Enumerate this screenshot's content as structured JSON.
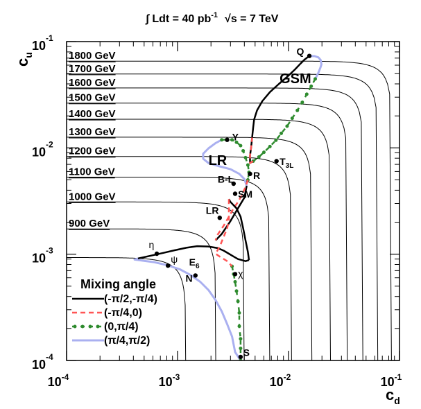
{
  "chart_data": {
    "type": "line",
    "title": "∫ Ldt = 40 pb⁻¹   √s = 7 TeV",
    "title_parts": {
      "int_prefix": "∫ Ldt = 40 pb",
      "int_exp": "-1",
      "energy": "√s = 7 TeV"
    },
    "xlabel": "c",
    "xlabel_sub": "d",
    "ylabel": "c",
    "ylabel_sub": "u",
    "x_scale": "log",
    "y_scale": "log",
    "xlim": [
      0.0001,
      0.1
    ],
    "ylim": [
      0.0001,
      0.1
    ],
    "x_ticks": [
      {
        "value": 0.0001,
        "base": "10",
        "exp": "-4"
      },
      {
        "value": 0.001,
        "base": "10",
        "exp": "-3"
      },
      {
        "value": 0.01,
        "base": "10",
        "exp": "-2"
      },
      {
        "value": 0.1,
        "base": "10",
        "exp": "-1"
      }
    ],
    "y_ticks": [
      {
        "value": 0.0001,
        "base": "10",
        "exp": "-4"
      },
      {
        "value": 0.001,
        "base": "10",
        "exp": "-3"
      },
      {
        "value": 0.01,
        "base": "10",
        "exp": "-2"
      },
      {
        "value": 0.1,
        "base": "10",
        "exp": "-1"
      }
    ],
    "grid": false,
    "mass_contours": [
      {
        "label": "1800 GeV",
        "cu": 0.0655,
        "cd": 0.085
      },
      {
        "label": "1700 GeV",
        "cu": 0.0495,
        "cd": 0.064
      },
      {
        "label": "1600 GeV",
        "cu": 0.0366,
        "cd": 0.047
      },
      {
        "label": "1500 GeV",
        "cu": 0.0264,
        "cd": 0.034
      },
      {
        "label": "1400 GeV",
        "cu": 0.0186,
        "cd": 0.024
      },
      {
        "label": "1300 GeV",
        "cu": 0.0126,
        "cd": 0.0163
      },
      {
        "label": "1200 GeV",
        "cu": 0.0083,
        "cd": 0.0107
      },
      {
        "label": "1100 GeV",
        "cu": 0.0053,
        "cd": 0.0068
      },
      {
        "label": "1000 GeV",
        "cu": 0.0031,
        "cd": 0.004
      },
      {
        "label": "900 GeV",
        "cu": 0.00173,
        "cd": 0.00222
      },
      {
        "label": "",
        "cu": 0.00093,
        "cd": 0.00119
      }
    ],
    "legend": {
      "title": "Mixing angle",
      "position": "bottom-left",
      "entries": [
        {
          "label": "(-π/2,-π/4)",
          "color": "#000000",
          "style": "solid"
        },
        {
          "label": "(-π/4,0)",
          "color": "#ff5555",
          "style": "dashed"
        },
        {
          "label": "(0,π/4)",
          "color": "#2e8b2e",
          "style": "dash-dot-markers"
        },
        {
          "label": "(π/4,π/2)",
          "color": "#aab0f0",
          "style": "solid"
        }
      ]
    },
    "series": [
      {
        "id": "GSM",
        "points": [
          [
            0.0154,
            0.0733
          ],
          [
            0.0172,
            0.073
          ],
          [
            0.0186,
            0.071
          ],
          [
            0.0195,
            0.067
          ],
          [
            0.0198,
            0.061
          ],
          [
            0.0194,
            0.057
          ],
          [
            0.0186,
            0.051
          ],
          [
            0.0174,
            0.0445
          ],
          [
            0.016,
            0.038
          ],
          [
            0.0146,
            0.032
          ],
          [
            0.0133,
            0.0268
          ],
          [
            0.012,
            0.0225
          ],
          [
            0.0108,
            0.019
          ],
          [
            0.0097,
            0.016
          ],
          [
            0.0086,
            0.0137
          ],
          [
            0.0077,
            0.0118
          ],
          [
            0.0068,
            0.0103
          ],
          [
            0.006,
            0.0091
          ],
          [
            0.0054,
            0.0082
          ],
          [
            0.0048,
            0.0075
          ],
          [
            0.0045,
            0.0072
          ],
          [
            0.0045,
            0.0085
          ],
          [
            0.0046,
            0.01
          ],
          [
            0.0047,
            0.0125
          ],
          [
            0.0048,
            0.0155
          ],
          [
            0.0049,
            0.0185
          ],
          [
            0.0052,
            0.0225
          ],
          [
            0.0058,
            0.0275
          ],
          [
            0.0068,
            0.0335
          ],
          [
            0.0082,
            0.04
          ],
          [
            0.0098,
            0.047
          ],
          [
            0.0114,
            0.0545
          ],
          [
            0.0128,
            0.062
          ],
          [
            0.014,
            0.068
          ],
          [
            0.0154,
            0.0733
          ]
        ],
        "quadrants": [
          {
            "from": 19,
            "to": 34,
            "entry": 0
          },
          {
            "from": 19,
            "to": 23,
            "entry": 1
          },
          {
            "from": 7,
            "to": 19,
            "entry": 2
          },
          {
            "from": 0,
            "to": 7,
            "entry": 3
          }
        ]
      },
      {
        "id": "LR",
        "points": [
          [
            0.0025,
            0.0119
          ],
          [
            0.0028,
            0.012
          ],
          [
            0.0031,
            0.0119
          ],
          [
            0.0034,
            0.0113
          ],
          [
            0.0037,
            0.0105
          ],
          [
            0.0039,
            0.0094
          ],
          [
            0.0041,
            0.0081
          ],
          [
            0.0043,
            0.0069
          ],
          [
            0.0044,
            0.0059
          ],
          [
            0.0043,
            0.005
          ],
          [
            0.0041,
            0.0043
          ],
          [
            0.0038,
            0.0036
          ],
          [
            0.0035,
            0.0031
          ],
          [
            0.0032,
            0.0027
          ],
          [
            0.0029,
            0.00225
          ],
          [
            0.0026,
            0.00185
          ],
          [
            0.0023,
            0.00153
          ],
          [
            0.0022,
            0.00135
          ],
          [
            0.0025,
            0.00155
          ],
          [
            0.003,
            0.00205
          ],
          [
            0.0035,
            0.0027
          ],
          [
            0.004,
            0.0034
          ],
          [
            0.0042,
            0.0044
          ],
          [
            0.004,
            0.0051
          ],
          [
            0.0036,
            0.0057
          ],
          [
            0.003,
            0.0063
          ],
          [
            0.0024,
            0.0067
          ],
          [
            0.0019,
            0.0072
          ],
          [
            0.0017,
            0.0079
          ],
          [
            0.0017,
            0.0088
          ],
          [
            0.0019,
            0.0099
          ],
          [
            0.0022,
            0.0111
          ],
          [
            0.0025,
            0.0119
          ]
        ],
        "quadrants": [
          {
            "from": 0,
            "to": 9,
            "entry": 2
          },
          {
            "from": 9,
            "to": 17,
            "entry": 1
          },
          {
            "from": 17,
            "to": 22,
            "entry": 0
          },
          {
            "from": 22,
            "to": 32,
            "entry": 3
          }
        ]
      },
      {
        "id": "E6",
        "points": [
          [
            0.00044,
            0.00091
          ],
          [
            0.00058,
            0.00097
          ],
          [
            0.00075,
            0.00103
          ],
          [
            0.00095,
            0.00109
          ],
          [
            0.0012,
            0.00115
          ],
          [
            0.0015,
            0.00119
          ],
          [
            0.0019,
            0.00118
          ],
          [
            0.0023,
            0.00114
          ],
          [
            0.0026,
            0.00108
          ],
          [
            0.0029,
            0.00101
          ],
          [
            0.0032,
            0.00095
          ],
          [
            0.0035,
            0.0009
          ],
          [
            0.0041,
            0.00086
          ],
          [
            0.0044,
            0.00088
          ],
          [
            0.0043,
            0.00105
          ],
          [
            0.0041,
            0.00135
          ],
          [
            0.0039,
            0.00175
          ],
          [
            0.0037,
            0.00225
          ],
          [
            0.0034,
            0.0027
          ],
          [
            0.003,
            0.0031
          ],
          [
            0.0029,
            0.0033
          ],
          [
            0.0029,
            0.0031
          ],
          [
            0.0029,
            0.0026
          ],
          [
            0.0029,
            0.0021
          ],
          [
            0.0028,
            0.00175
          ],
          [
            0.0026,
            0.00145
          ],
          [
            0.0024,
            0.00118
          ],
          [
            0.0022,
            0.00101
          ],
          [
            0.0024,
            0.00095
          ],
          [
            0.0028,
            0.00086
          ],
          [
            0.0031,
            0.00077
          ],
          [
            0.0032,
            0.00065
          ],
          [
            0.0033,
            0.00055
          ],
          [
            0.0034,
            0.00045
          ],
          [
            0.0035,
            0.00036
          ],
          [
            0.0036,
            0.00028
          ],
          [
            0.0036,
            0.00021
          ],
          [
            0.0037,
            0.00016
          ],
          [
            0.0037,
            0.00013
          ],
          [
            0.0037,
            0.000108
          ],
          [
            0.0037,
            0.0001
          ],
          [
            0.0033,
            0.00012
          ],
          [
            0.0031,
            0.000168
          ],
          [
            0.0028,
            0.00022
          ],
          [
            0.0025,
            0.00029
          ],
          [
            0.0022,
            0.00037
          ],
          [
            0.0019,
            0.00046
          ],
          [
            0.0016,
            0.00055
          ],
          [
            0.0013,
            0.00064
          ],
          [
            0.00105,
            0.00072
          ],
          [
            0.0008,
            0.00079
          ],
          [
            0.00062,
            0.00084
          ],
          [
            0.00048,
            0.00087
          ],
          [
            0.00041,
            0.00089
          ],
          [
            0.00044,
            0.00091
          ]
        ],
        "quadrants": [
          {
            "from": 0,
            "to": 13,
            "entry": 0
          },
          {
            "from": 13,
            "to": 20,
            "entry": 0
          },
          {
            "from": 20,
            "to": 30,
            "entry": 1
          },
          {
            "from": 30,
            "to": 40,
            "entry": 2
          },
          {
            "from": 40,
            "to": 54,
            "entry": 3
          }
        ]
      }
    ],
    "model_points": [
      {
        "label": "Q",
        "x": 0.0154,
        "y": 0.0733,
        "lx": 0.0118,
        "ly": 0.075
      },
      {
        "label": "GSM",
        "x": null,
        "y": null,
        "lx": 0.0083,
        "ly": 0.0405
      },
      {
        "label": "Y",
        "x": 0.0028,
        "y": 0.0119,
        "lx": 0.0031,
        "ly": 0.0118
      },
      {
        "label": "LR",
        "x": null,
        "y": null,
        "lx": 0.0019,
        "ly": 0.0069
      },
      {
        "label": "T3L",
        "x": 0.0078,
        "y": 0.0075,
        "lx": 0.0083,
        "ly": 0.0069,
        "sub": "3L"
      },
      {
        "label": "R",
        "x": 0.0045,
        "y": 0.0057,
        "lx": 0.0048,
        "ly": 0.0051
      },
      {
        "label": "B-L",
        "x": 0.0032,
        "y": 0.0046,
        "lx": 0.0023,
        "ly": 0.0047
      },
      {
        "label": "SM",
        "x": 0.0033,
        "y": 0.0037,
        "lx": 0.0035,
        "ly": 0.0034
      },
      {
        "label": "LR",
        "x": 0.0024,
        "y": 0.0022,
        "lx": 0.0018,
        "ly": 0.0024
      },
      {
        "label": "η",
        "x": 0.00065,
        "y": 0.00101,
        "lx": 0.00055,
        "ly": 0.00114
      },
      {
        "label": "ψ",
        "x": 0.00082,
        "y": 0.00078,
        "lx": 0.00087,
        "ly": 0.00083
      },
      {
        "label": "E6",
        "x": null,
        "y": null,
        "lx": 0.00127,
        "ly": 0.00078,
        "sub": "6"
      },
      {
        "label": "N",
        "x": 0.00145,
        "y": 0.00063,
        "lx": 0.00118,
        "ly": 0.00055
      },
      {
        "label": "χ",
        "x": 0.0033,
        "y": 0.00065,
        "lx": 0.0035,
        "ly": 0.00061
      },
      {
        "label": "S",
        "x": 0.0037,
        "y": 0.000108,
        "lx": 0.0039,
        "ly": 0.00011
      }
    ]
  }
}
